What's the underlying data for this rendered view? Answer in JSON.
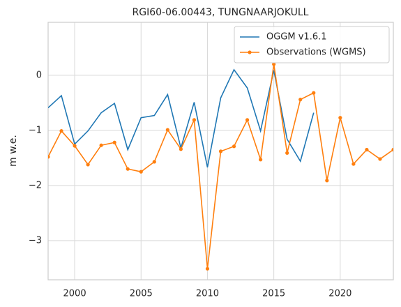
{
  "chart_data": {
    "type": "line",
    "title": "RGI60-06.00443, TUNGNAARJOKULL",
    "y_label": "m w.e.",
    "x": [
      1998,
      1999,
      2000,
      2001,
      2002,
      2003,
      2004,
      2005,
      2006,
      2007,
      2008,
      2009,
      2010,
      2011,
      2012,
      2013,
      2014,
      2015,
      2016,
      2017,
      2018,
      2019,
      2020,
      2021,
      2022,
      2023,
      2024
    ],
    "series": [
      {
        "name": "OGGM v1.6.1",
        "color": "#1f77b4",
        "values": [
          -0.59,
          -0.37,
          -1.25,
          -1.01,
          -0.68,
          -0.51,
          -1.35,
          -0.77,
          -0.73,
          -0.35,
          -1.32,
          -0.49,
          -1.67,
          -0.41,
          0.1,
          -0.23,
          -1.01,
          0.09,
          -1.16,
          -1.56,
          -0.68,
          null,
          null,
          null,
          null,
          null,
          null
        ]
      },
      {
        "name": "Observations (WGMS)",
        "color": "#ff7f0e",
        "marker": "o",
        "values": [
          -1.48,
          -1.01,
          -1.28,
          -1.62,
          -1.27,
          -1.22,
          -1.7,
          -1.75,
          -1.57,
          -0.99,
          -1.34,
          -0.81,
          -3.51,
          -1.38,
          -1.29,
          -0.81,
          -1.53,
          0.2,
          -1.41,
          -0.44,
          -0.32,
          -1.91,
          -0.77,
          -1.61,
          -1.35,
          -1.52,
          -1.35
        ]
      }
    ],
    "xlim": [
      1998,
      2024
    ],
    "xticks": [
      2000,
      2005,
      2010,
      2015,
      2020
    ],
    "ylim": [
      -3.71,
      0.96
    ],
    "yticks": [
      {
        "value": -3,
        "label": "−3"
      },
      {
        "value": -2,
        "label": "−2"
      },
      {
        "value": -1,
        "label": "−1"
      },
      0
    ],
    "grid": true,
    "legend": "upper right"
  }
}
